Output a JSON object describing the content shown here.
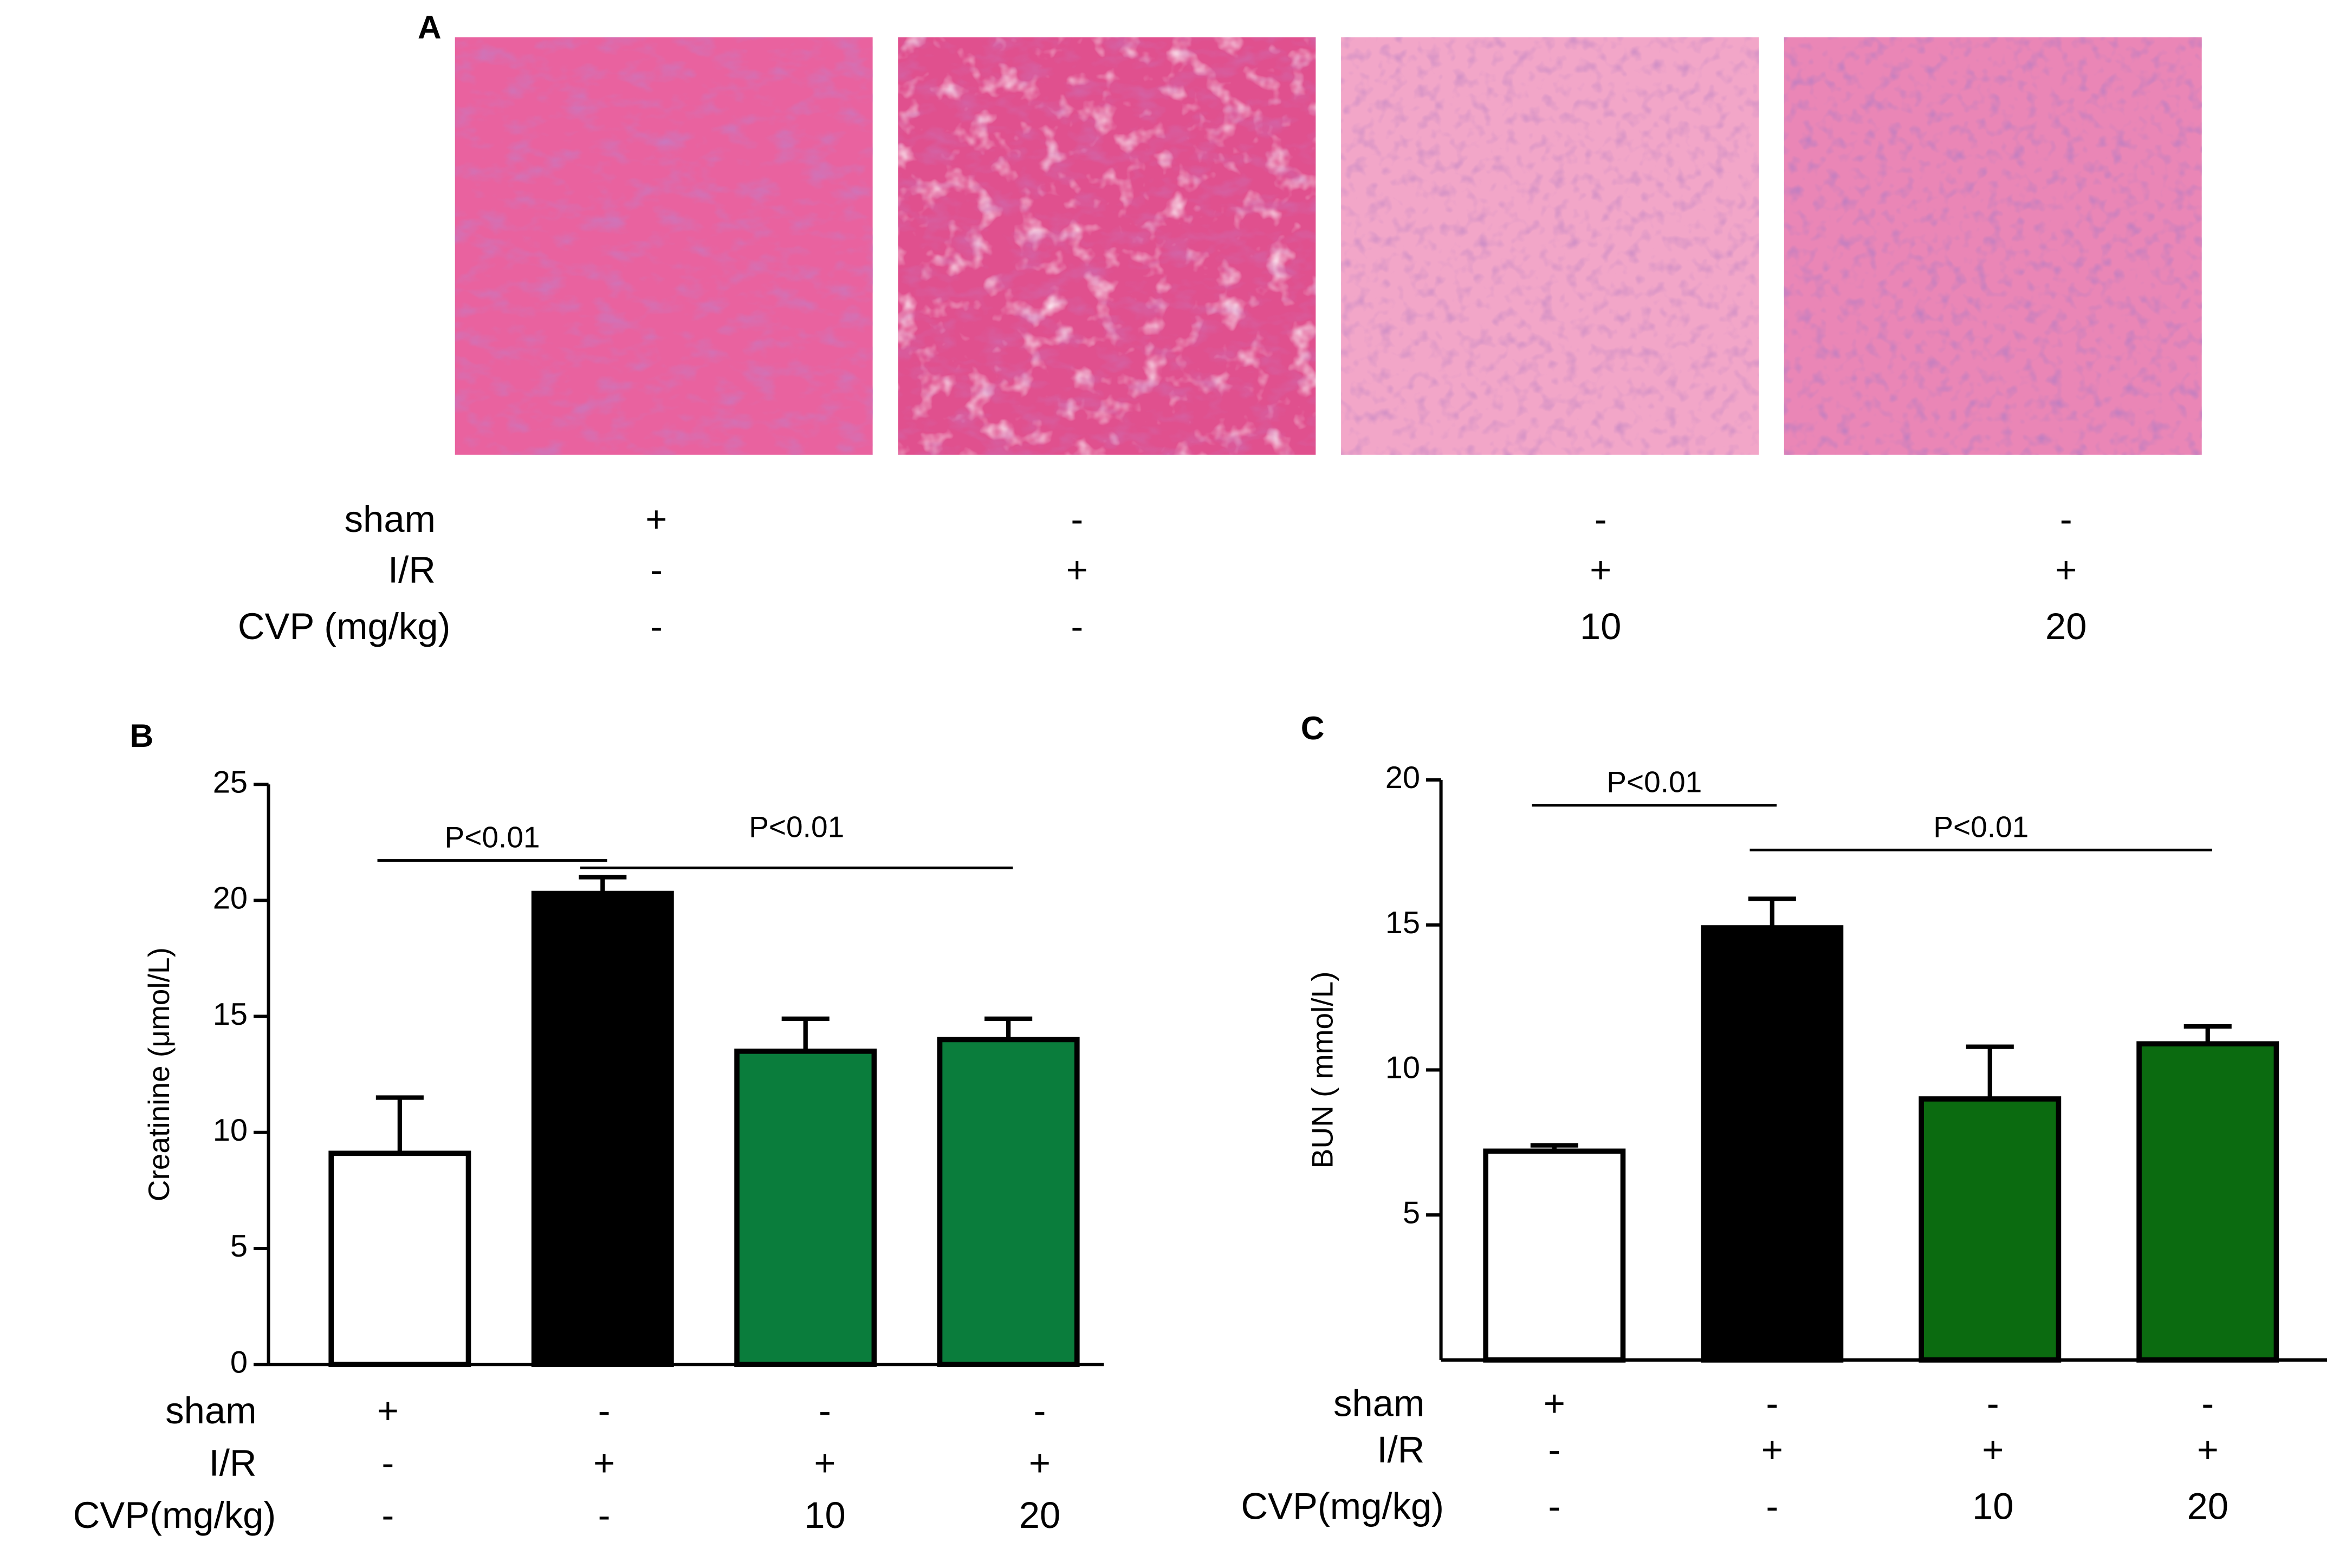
{
  "panel_a": {
    "label": "A",
    "rows": [
      {
        "name": "sham",
        "cells": [
          "+",
          "-",
          "-",
          "-"
        ]
      },
      {
        "name": "I/R",
        "cells": [
          "-",
          "+",
          "+",
          "+"
        ]
      },
      {
        "name": "CVP (mg/kg)",
        "cells": [
          "-",
          "-",
          "10",
          "20"
        ]
      }
    ]
  },
  "chart_data": [
    {
      "type": "bar",
      "panel_label": "B",
      "ylabel": "Creatinine (μmol/L)",
      "values": [
        9.1,
        20.3,
        13.5,
        14.0
      ],
      "errors": [
        2.4,
        0.7,
        1.4,
        0.9
      ],
      "colors": [
        "#ffffff",
        "#000000",
        "#0a7d3c",
        "#0a7d3c"
      ],
      "ylim": [
        0,
        25
      ],
      "yticks": [
        0,
        5,
        10,
        15,
        20,
        25
      ],
      "conditions": [
        {
          "name": "sham",
          "cells": [
            "+",
            "-",
            "-",
            "-"
          ]
        },
        {
          "name": "I/R",
          "cells": [
            "-",
            "+",
            "+",
            "+"
          ]
        },
        {
          "name": "CVP(mg/kg)",
          "cells": [
            "-",
            "-",
            "10",
            "20"
          ]
        }
      ],
      "comparisons": [
        {
          "label": "P<0.01",
          "groups": [
            0,
            1
          ]
        },
        {
          "label": "P<0.01",
          "groups": [
            1,
            3
          ]
        }
      ]
    },
    {
      "type": "bar",
      "panel_label": "C",
      "ylabel": "BUN ( mmol/L)",
      "values": [
        7.2,
        14.9,
        9.0,
        10.9
      ],
      "errors": [
        0.2,
        1.0,
        1.8,
        0.6
      ],
      "colors": [
        "#ffffff",
        "#000000",
        "#0b6b10",
        "#0b6b10"
      ],
      "ylim": [
        0,
        20
      ],
      "yticks": [
        5,
        10,
        15,
        20
      ],
      "conditions": [
        {
          "name": "sham",
          "cells": [
            "+",
            "-",
            "-",
            "-"
          ]
        },
        {
          "name": "I/R",
          "cells": [
            "-",
            "+",
            "+",
            "+"
          ]
        },
        {
          "name": "CVP(mg/kg)",
          "cells": [
            "-",
            "-",
            "10",
            "20"
          ]
        }
      ],
      "comparisons": [
        {
          "label": "P<0.01",
          "groups": [
            0,
            1
          ]
        },
        {
          "label": "P<0.01",
          "groups": [
            1,
            3
          ]
        }
      ]
    }
  ]
}
